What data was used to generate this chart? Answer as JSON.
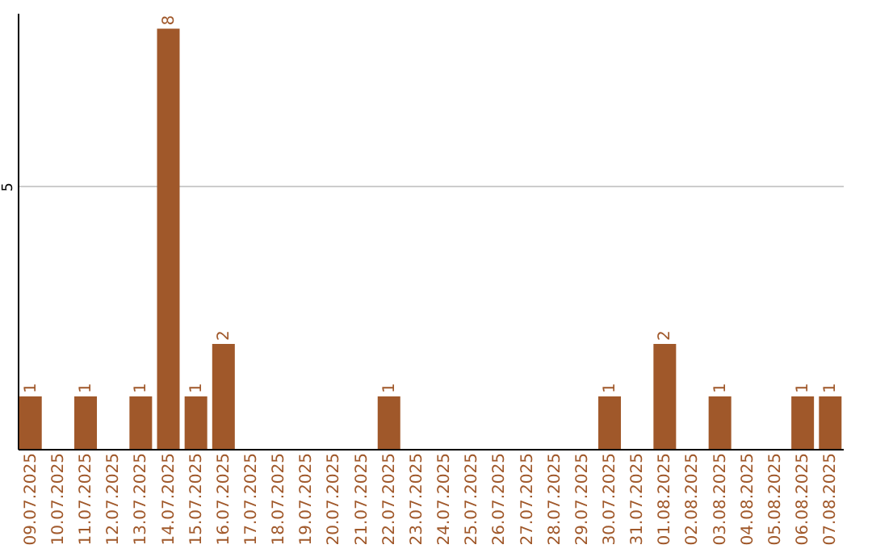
{
  "chart_data": {
    "type": "bar",
    "categories": [
      "09.07.2025",
      "10.07.2025",
      "11.07.2025",
      "12.07.2025",
      "13.07.2025",
      "14.07.2025",
      "15.07.2025",
      "16.07.2025",
      "17.07.2025",
      "18.07.2025",
      "19.07.2025",
      "20.07.2025",
      "21.07.2025",
      "22.07.2025",
      "23.07.2025",
      "24.07.2025",
      "25.07.2025",
      "26.07.2025",
      "27.07.2025",
      "28.07.2025",
      "29.07.2025",
      "30.07.2025",
      "31.07.2025",
      "01.08.2025",
      "02.08.2025",
      "03.08.2025",
      "04.08.2025",
      "05.08.2025",
      "06.08.2025",
      "07.08.2025"
    ],
    "values": [
      1,
      null,
      1,
      null,
      1,
      8,
      1,
      2,
      null,
      null,
      null,
      null,
      null,
      1,
      null,
      null,
      null,
      null,
      null,
      null,
      null,
      1,
      null,
      2,
      null,
      1,
      null,
      null,
      1,
      1
    ],
    "color": "#a0582a",
    "ylim": [
      0,
      8.3
    ],
    "yticks": [
      5
    ],
    "grid": "y",
    "data_labels": true
  }
}
